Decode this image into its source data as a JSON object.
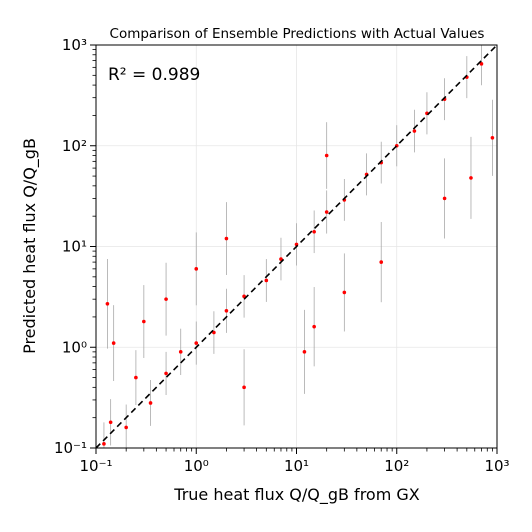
{
  "chart_data": {
    "type": "scatter",
    "title": "Comparison of Ensemble Predictions with Actual Values",
    "annotation": "R² = 0.989",
    "xlabel": "True heat flux Q/Q_gB from GX",
    "ylabel": "Predicted heat flux Q/Q_gB",
    "xscale": "log",
    "yscale": "log",
    "xlim": [
      0.1,
      1000
    ],
    "ylim": [
      0.1,
      1000
    ],
    "grid": true,
    "xticks": [
      "10⁻¹",
      "10⁰",
      "10¹",
      "10²",
      "10³"
    ],
    "yticks": [
      "10⁻¹",
      "10⁰",
      "10¹",
      "10²",
      "10³"
    ],
    "reference_line": {
      "style": "dashed",
      "color": "#000000",
      "from": [
        0.1,
        0.1
      ],
      "to": [
        1000,
        1000
      ]
    },
    "point_color": "#ff0000",
    "errorbar_color": "#a9a9a9",
    "series": [
      {
        "points": [
          {
            "x": 0.12,
            "y": 0.11
          },
          {
            "x": 0.14,
            "y": 0.18
          },
          {
            "x": 0.13,
            "y": 2.7
          },
          {
            "x": 0.15,
            "y": 1.1
          },
          {
            "x": 0.2,
            "y": 0.16
          },
          {
            "x": 0.25,
            "y": 0.5
          },
          {
            "x": 0.35,
            "y": 0.28
          },
          {
            "x": 0.5,
            "y": 0.55
          },
          {
            "x": 0.7,
            "y": 0.9
          },
          {
            "x": 1.0,
            "y": 1.1
          },
          {
            "x": 1.5,
            "y": 1.4
          },
          {
            "x": 2.0,
            "y": 2.3
          },
          {
            "x": 3.0,
            "y": 3.2
          },
          {
            "x": 5.0,
            "y": 4.6
          },
          {
            "x": 7.0,
            "y": 7.5
          },
          {
            "x": 10.0,
            "y": 10.5
          },
          {
            "x": 15.0,
            "y": 14.0
          },
          {
            "x": 20.0,
            "y": 22.0
          },
          {
            "x": 30.0,
            "y": 29.0
          },
          {
            "x": 50.0,
            "y": 52.0
          },
          {
            "x": 70.0,
            "y": 68.0
          },
          {
            "x": 100.0,
            "y": 100.0
          },
          {
            "x": 150.0,
            "y": 140.0
          },
          {
            "x": 200.0,
            "y": 210.0
          },
          {
            "x": 300.0,
            "y": 290.0
          },
          {
            "x": 500.0,
            "y": 480.0
          },
          {
            "x": 700.0,
            "y": 650.0
          },
          {
            "x": 550.0,
            "y": 48.0
          },
          {
            "x": 300.0,
            "y": 30.0
          },
          {
            "x": 70.0,
            "y": 7.0
          },
          {
            "x": 30.0,
            "y": 3.5
          },
          {
            "x": 15.0,
            "y": 1.6
          },
          {
            "x": 12.0,
            "y": 0.9
          },
          {
            "x": 3.0,
            "y": 0.4
          },
          {
            "x": 20.0,
            "y": 80.0
          },
          {
            "x": 2.0,
            "y": 12.0
          },
          {
            "x": 1.0,
            "y": 6.0
          },
          {
            "x": 0.5,
            "y": 3.0
          },
          {
            "x": 0.3,
            "y": 1.8
          },
          {
            "x": 900.0,
            "y": 120.0
          }
        ]
      }
    ]
  }
}
